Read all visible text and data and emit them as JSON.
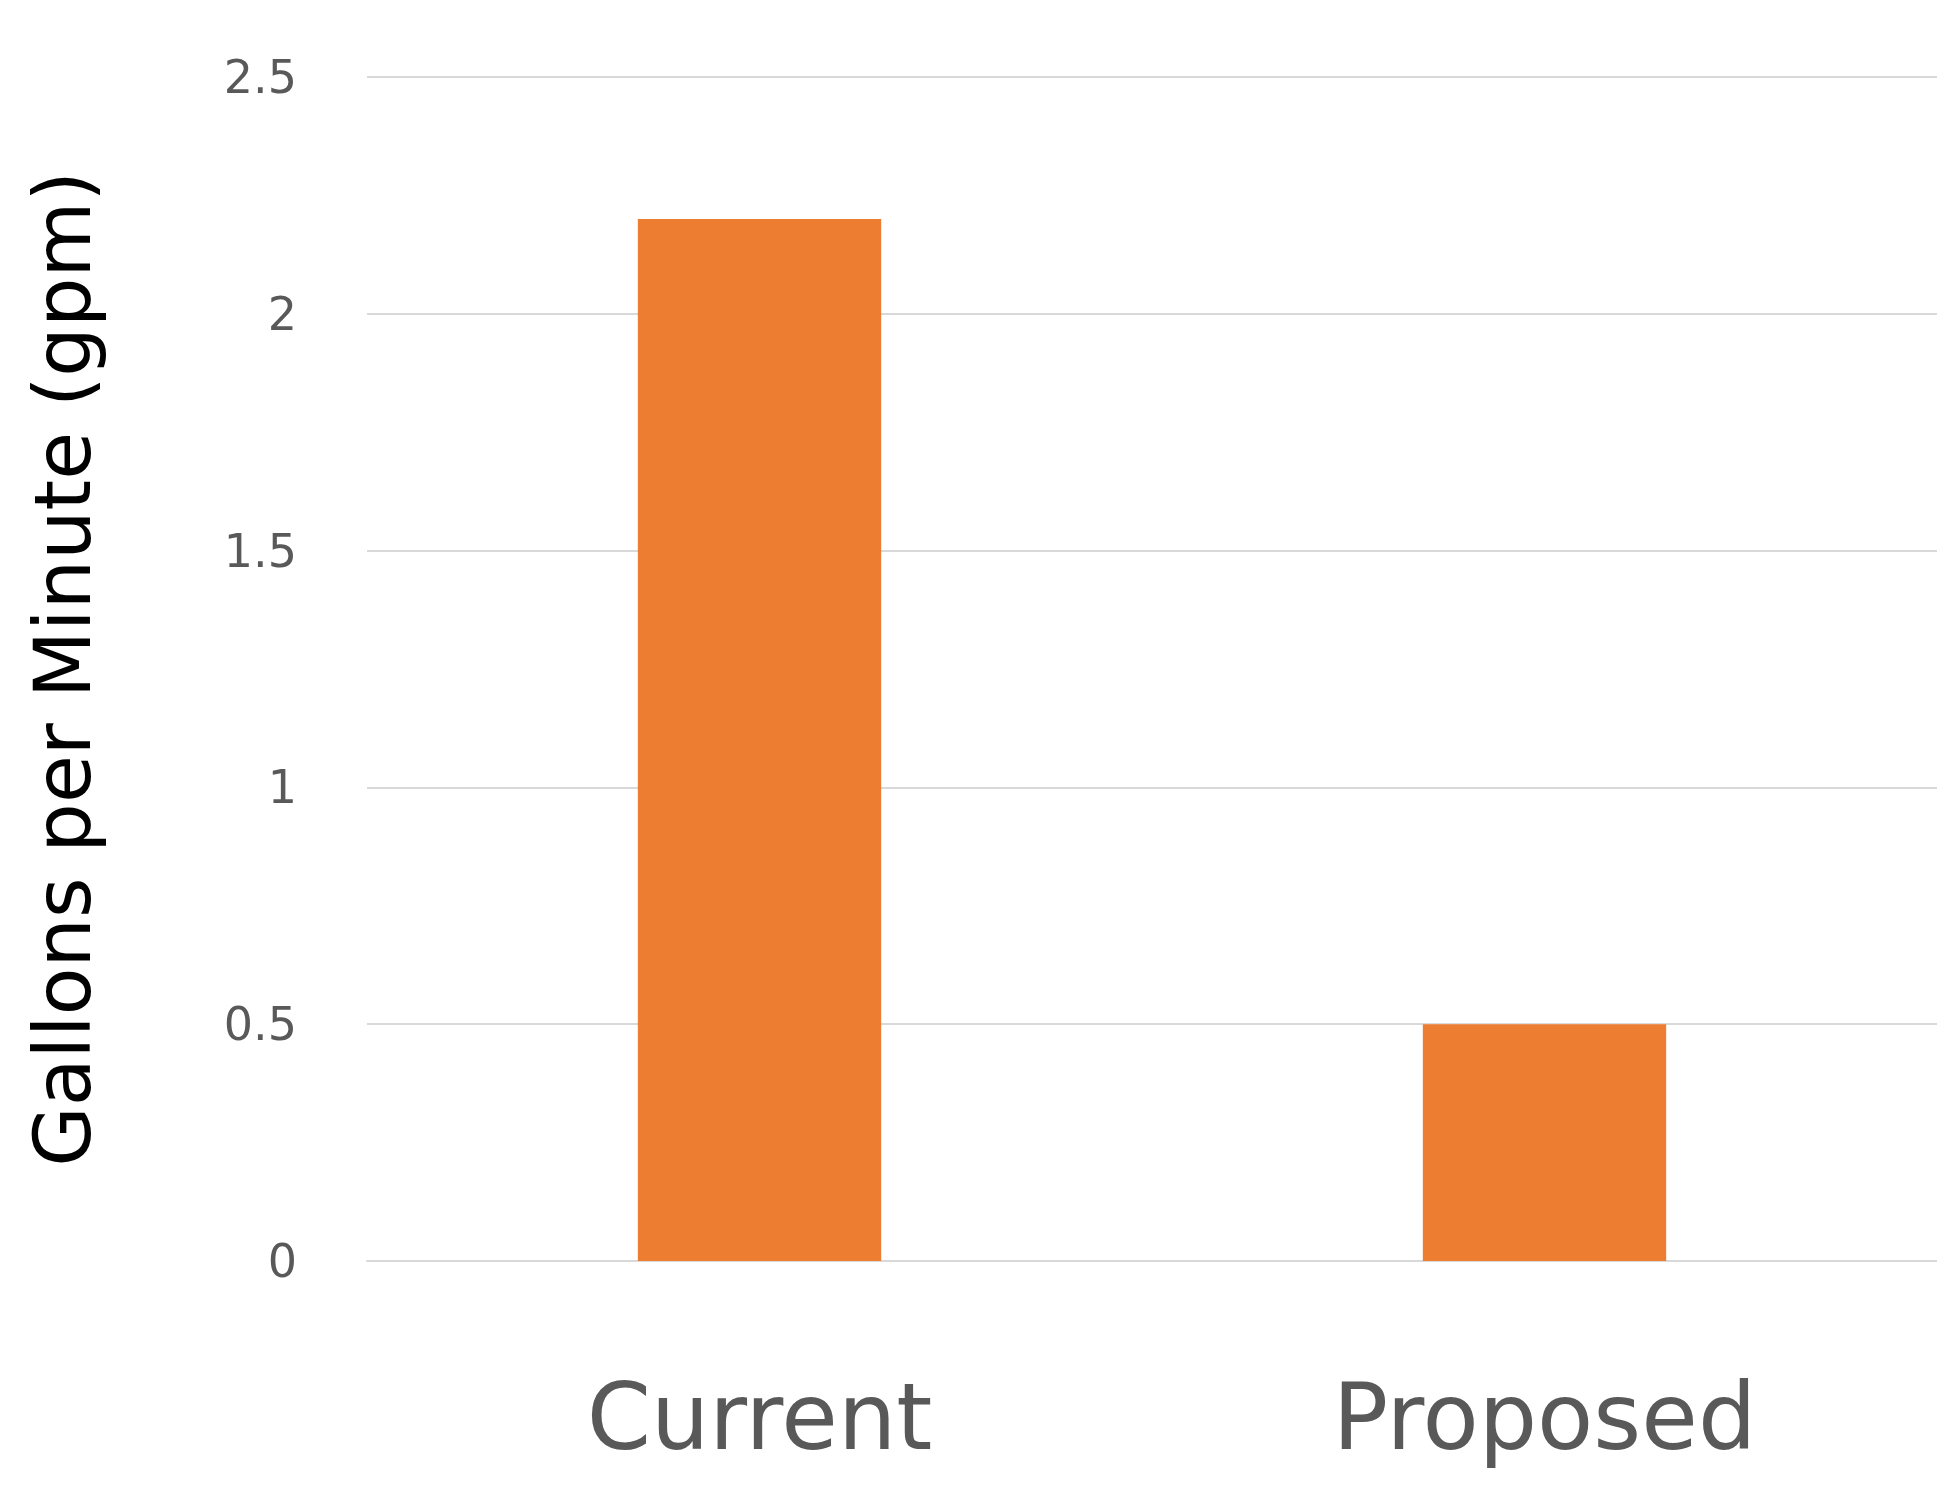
{
  "chart_data": {
    "type": "bar",
    "ylabel": "Gallons per Minute (gpm)",
    "categories": [
      "Current",
      "Proposed"
    ],
    "values": [
      2.2,
      0.5
    ],
    "color": "#ed7d31",
    "ylim": [
      0,
      2.5
    ],
    "yticks": [
      0,
      0.5,
      1,
      1.5,
      2,
      2.5
    ],
    "grid": "y"
  }
}
